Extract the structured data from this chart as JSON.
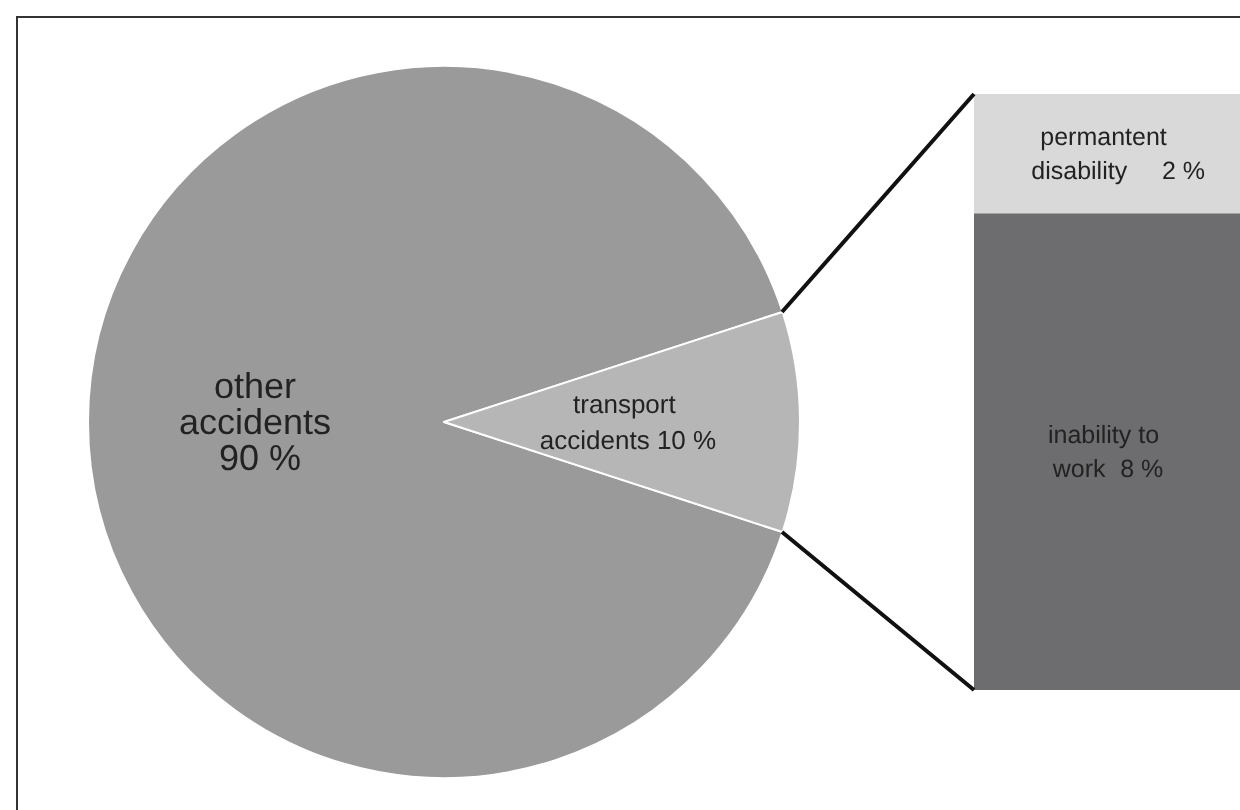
{
  "chart_data": [
    {
      "type": "pie",
      "categories": [
        "other accidents",
        "transport accidents"
      ],
      "values": [
        90,
        10
      ],
      "value_labels": [
        "90 %",
        "10 %"
      ],
      "colors": [
        "#9a9a9a",
        "#b6b6b6"
      ],
      "legend": false
    },
    {
      "type": "bar",
      "stacked": true,
      "categories": [
        null
      ],
      "tick_labels": false,
      "legend": false,
      "series": [
        {
          "name": "inability to work",
          "color": "#6d6d6f",
          "values": [
            8
          ],
          "value_labels": [
            "8 %"
          ]
        },
        {
          "name": "permantent disability",
          "color": "#d9d9d9",
          "values": [
            2
          ],
          "value_labels": [
            "2 %"
          ]
        }
      ]
    }
  ]
}
